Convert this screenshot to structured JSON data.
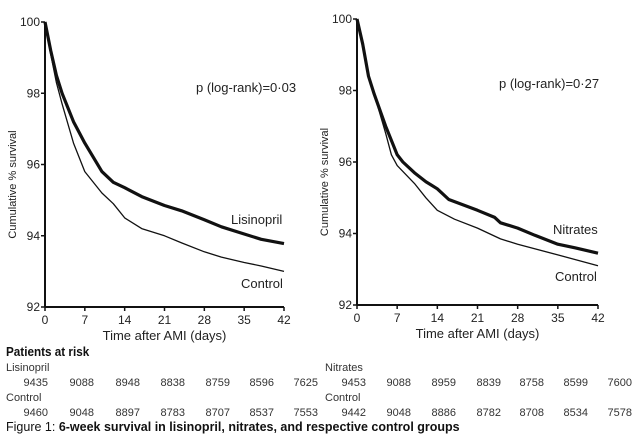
{
  "chart_data": [
    {
      "type": "line",
      "xlabel": "Time after AMI (days)",
      "ylabel": "Cumulative % survival",
      "xlim": [
        0,
        42
      ],
      "ylim": [
        92,
        100
      ],
      "xticks": [
        0,
        7,
        14,
        21,
        28,
        35,
        42
      ],
      "yticks": [
        92,
        94,
        96,
        98,
        100
      ],
      "annotation": "p (log-rank)=0·03",
      "grid": false,
      "series": [
        {
          "name": "Lisinopril",
          "style": "thick",
          "x": [
            0,
            1,
            2,
            3,
            5,
            7,
            10,
            12,
            14,
            17,
            21,
            24,
            28,
            31,
            35,
            38,
            42
          ],
          "y": [
            100,
            99.2,
            98.5,
            98.0,
            97.2,
            96.6,
            95.8,
            95.5,
            95.35,
            95.1,
            94.85,
            94.7,
            94.45,
            94.25,
            94.05,
            93.9,
            93.78
          ]
        },
        {
          "name": "Control",
          "style": "thin",
          "x": [
            0,
            1,
            2,
            3,
            5,
            7,
            10,
            12,
            14,
            17,
            21,
            24,
            28,
            31,
            35,
            38,
            42
          ],
          "y": [
            100,
            99.1,
            98.3,
            97.7,
            96.6,
            95.8,
            95.2,
            94.9,
            94.5,
            94.2,
            94.0,
            93.8,
            93.55,
            93.4,
            93.25,
            93.15,
            93.0
          ]
        }
      ]
    },
    {
      "type": "line",
      "xlabel": "Time after AMI (days)",
      "ylabel": "Cumulative % survival",
      "xlim": [
        0,
        42
      ],
      "ylim": [
        92,
        100
      ],
      "xticks": [
        0,
        7,
        14,
        21,
        28,
        35,
        42
      ],
      "yticks": [
        92,
        94,
        96,
        98,
        100
      ],
      "annotation": "p (log-rank)=0·27",
      "grid": false,
      "series": [
        {
          "name": "Nitrates",
          "style": "thick",
          "x": [
            0,
            1,
            2,
            3,
            5,
            7,
            8,
            10,
            12,
            13,
            14,
            16,
            21,
            24,
            25,
            28,
            31,
            35,
            38,
            42
          ],
          "y": [
            100,
            99.3,
            98.4,
            97.9,
            97.0,
            96.2,
            96.0,
            95.7,
            95.45,
            95.35,
            95.25,
            94.95,
            94.65,
            94.45,
            94.3,
            94.15,
            93.95,
            93.7,
            93.6,
            93.45
          ]
        },
        {
          "name": "Control",
          "style": "thin",
          "x": [
            0,
            1,
            2,
            3,
            5,
            6,
            7,
            10,
            12,
            14,
            17,
            21,
            25,
            28,
            35,
            42
          ],
          "y": [
            100,
            99.2,
            98.4,
            97.9,
            96.8,
            96.2,
            95.9,
            95.4,
            95.0,
            94.65,
            94.4,
            94.15,
            93.85,
            93.7,
            93.4,
            93.1
          ]
        }
      ]
    }
  ],
  "risk": {
    "title": "Patients at risk",
    "left": [
      {
        "name": "Lisinopril",
        "values": [
          "9435",
          "9088",
          "8948",
          "8838",
          "8759",
          "8596",
          "7625"
        ]
      },
      {
        "name": "Control",
        "values": [
          "9460",
          "9048",
          "8897",
          "8783",
          "8707",
          "8537",
          "7553"
        ]
      }
    ],
    "right": [
      {
        "name": "Nitrates",
        "values": [
          "9453",
          "9088",
          "8959",
          "8839",
          "8758",
          "8599",
          "7600"
        ]
      },
      {
        "name": "Control",
        "values": [
          "9442",
          "9048",
          "8886",
          "8782",
          "8708",
          "8534",
          "7578"
        ]
      }
    ]
  },
  "caption": {
    "prefix": "Figure 1: ",
    "text": "6-week survival in lisinopril, nitrates, and respective control groups"
  }
}
